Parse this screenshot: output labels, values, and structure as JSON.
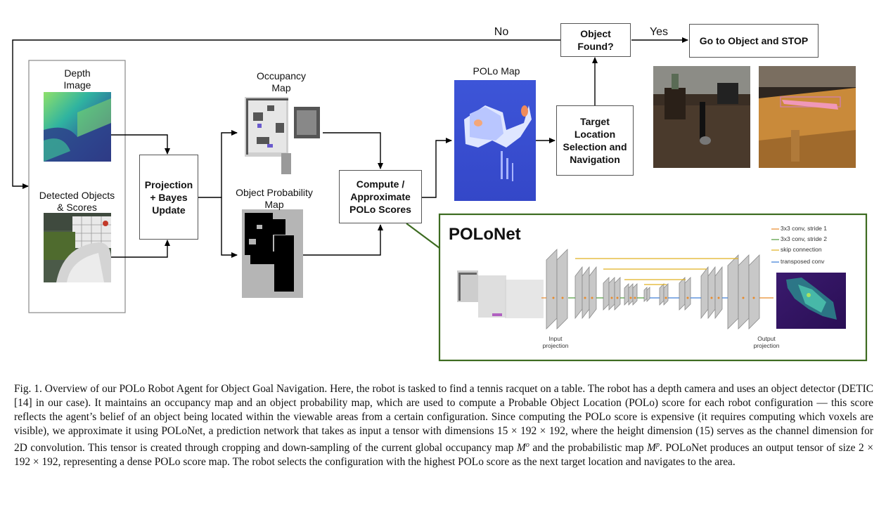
{
  "diagram": {
    "depth_image_label": "Depth\nImage",
    "detected_objects_label": "Detected Objects\n& Scores",
    "projection_box": "Projection\n+ Bayes\nUpdate",
    "occupancy_map_label": "Occupancy\nMap",
    "object_probability_map_label": "Object Probability\nMap",
    "compute_box": "Compute /\nApproximate\nPOLo Scores",
    "polo_map_label": "POLo Map",
    "target_box": "Target\nLocation\nSelection and\nNavigation",
    "object_found_box": "Object\nFound?",
    "no_label": "No",
    "yes_label": "Yes",
    "goto_box": "Go to Object and STOP",
    "polonet_title": "POLoNet",
    "legend": [
      {
        "label": "3x3 conv, stride 1",
        "color": "#e88a2a"
      },
      {
        "label": "3x3 conv, stride 2",
        "color": "#4c9a3a"
      },
      {
        "label": "skip connection",
        "color": "#e0b020"
      },
      {
        "label": "transposed conv",
        "color": "#3a7bd5"
      }
    ],
    "input_projection_label": "Input\nprojection",
    "output_projection_label": "Output\nprojection",
    "colors": {
      "polonet_border": "#3d6b21",
      "arrow": "#000000",
      "box_border": "#555555",
      "polo_map_blue": "#3b50d0",
      "layer_gray": "#c8c8c8"
    }
  },
  "caption": {
    "prefix": "Fig. 1.   Overview of our POLo Robot Agent for Object Goal Navigation. Here, the robot is tasked to find a tennis racquet on a table. The robot has a depth camera and uses an object detector (DETIC [14] in our case). It maintains an occupancy map and an object probability map, which are used to compute a Probable Object Location (POLo) score for each robot configuration — this score reflects the agent’s belief of an object being located within the viewable areas from a certain configuration. Since computing the POLo score is expensive (it requires computing which voxels are visible), we approximate it using POLoNet, a prediction network that takes as input a tensor with dimensions 15 × 192 × 192, where the height dimension (15) serves as the channel dimension for 2D convolution. This tensor is created through cropping and down-sampling of the current global occupancy map ",
    "map_symbol": "M",
    "sup_o": "o",
    "middle": " and the probabilistic map ",
    "sup_p": "p",
    "suffix": ". POLoNet produces an output tensor of size 2 × 192 × 192, representing a dense POLo score map. The robot selects the configuration with the highest POLo score as the next target location and navigates to the area."
  }
}
